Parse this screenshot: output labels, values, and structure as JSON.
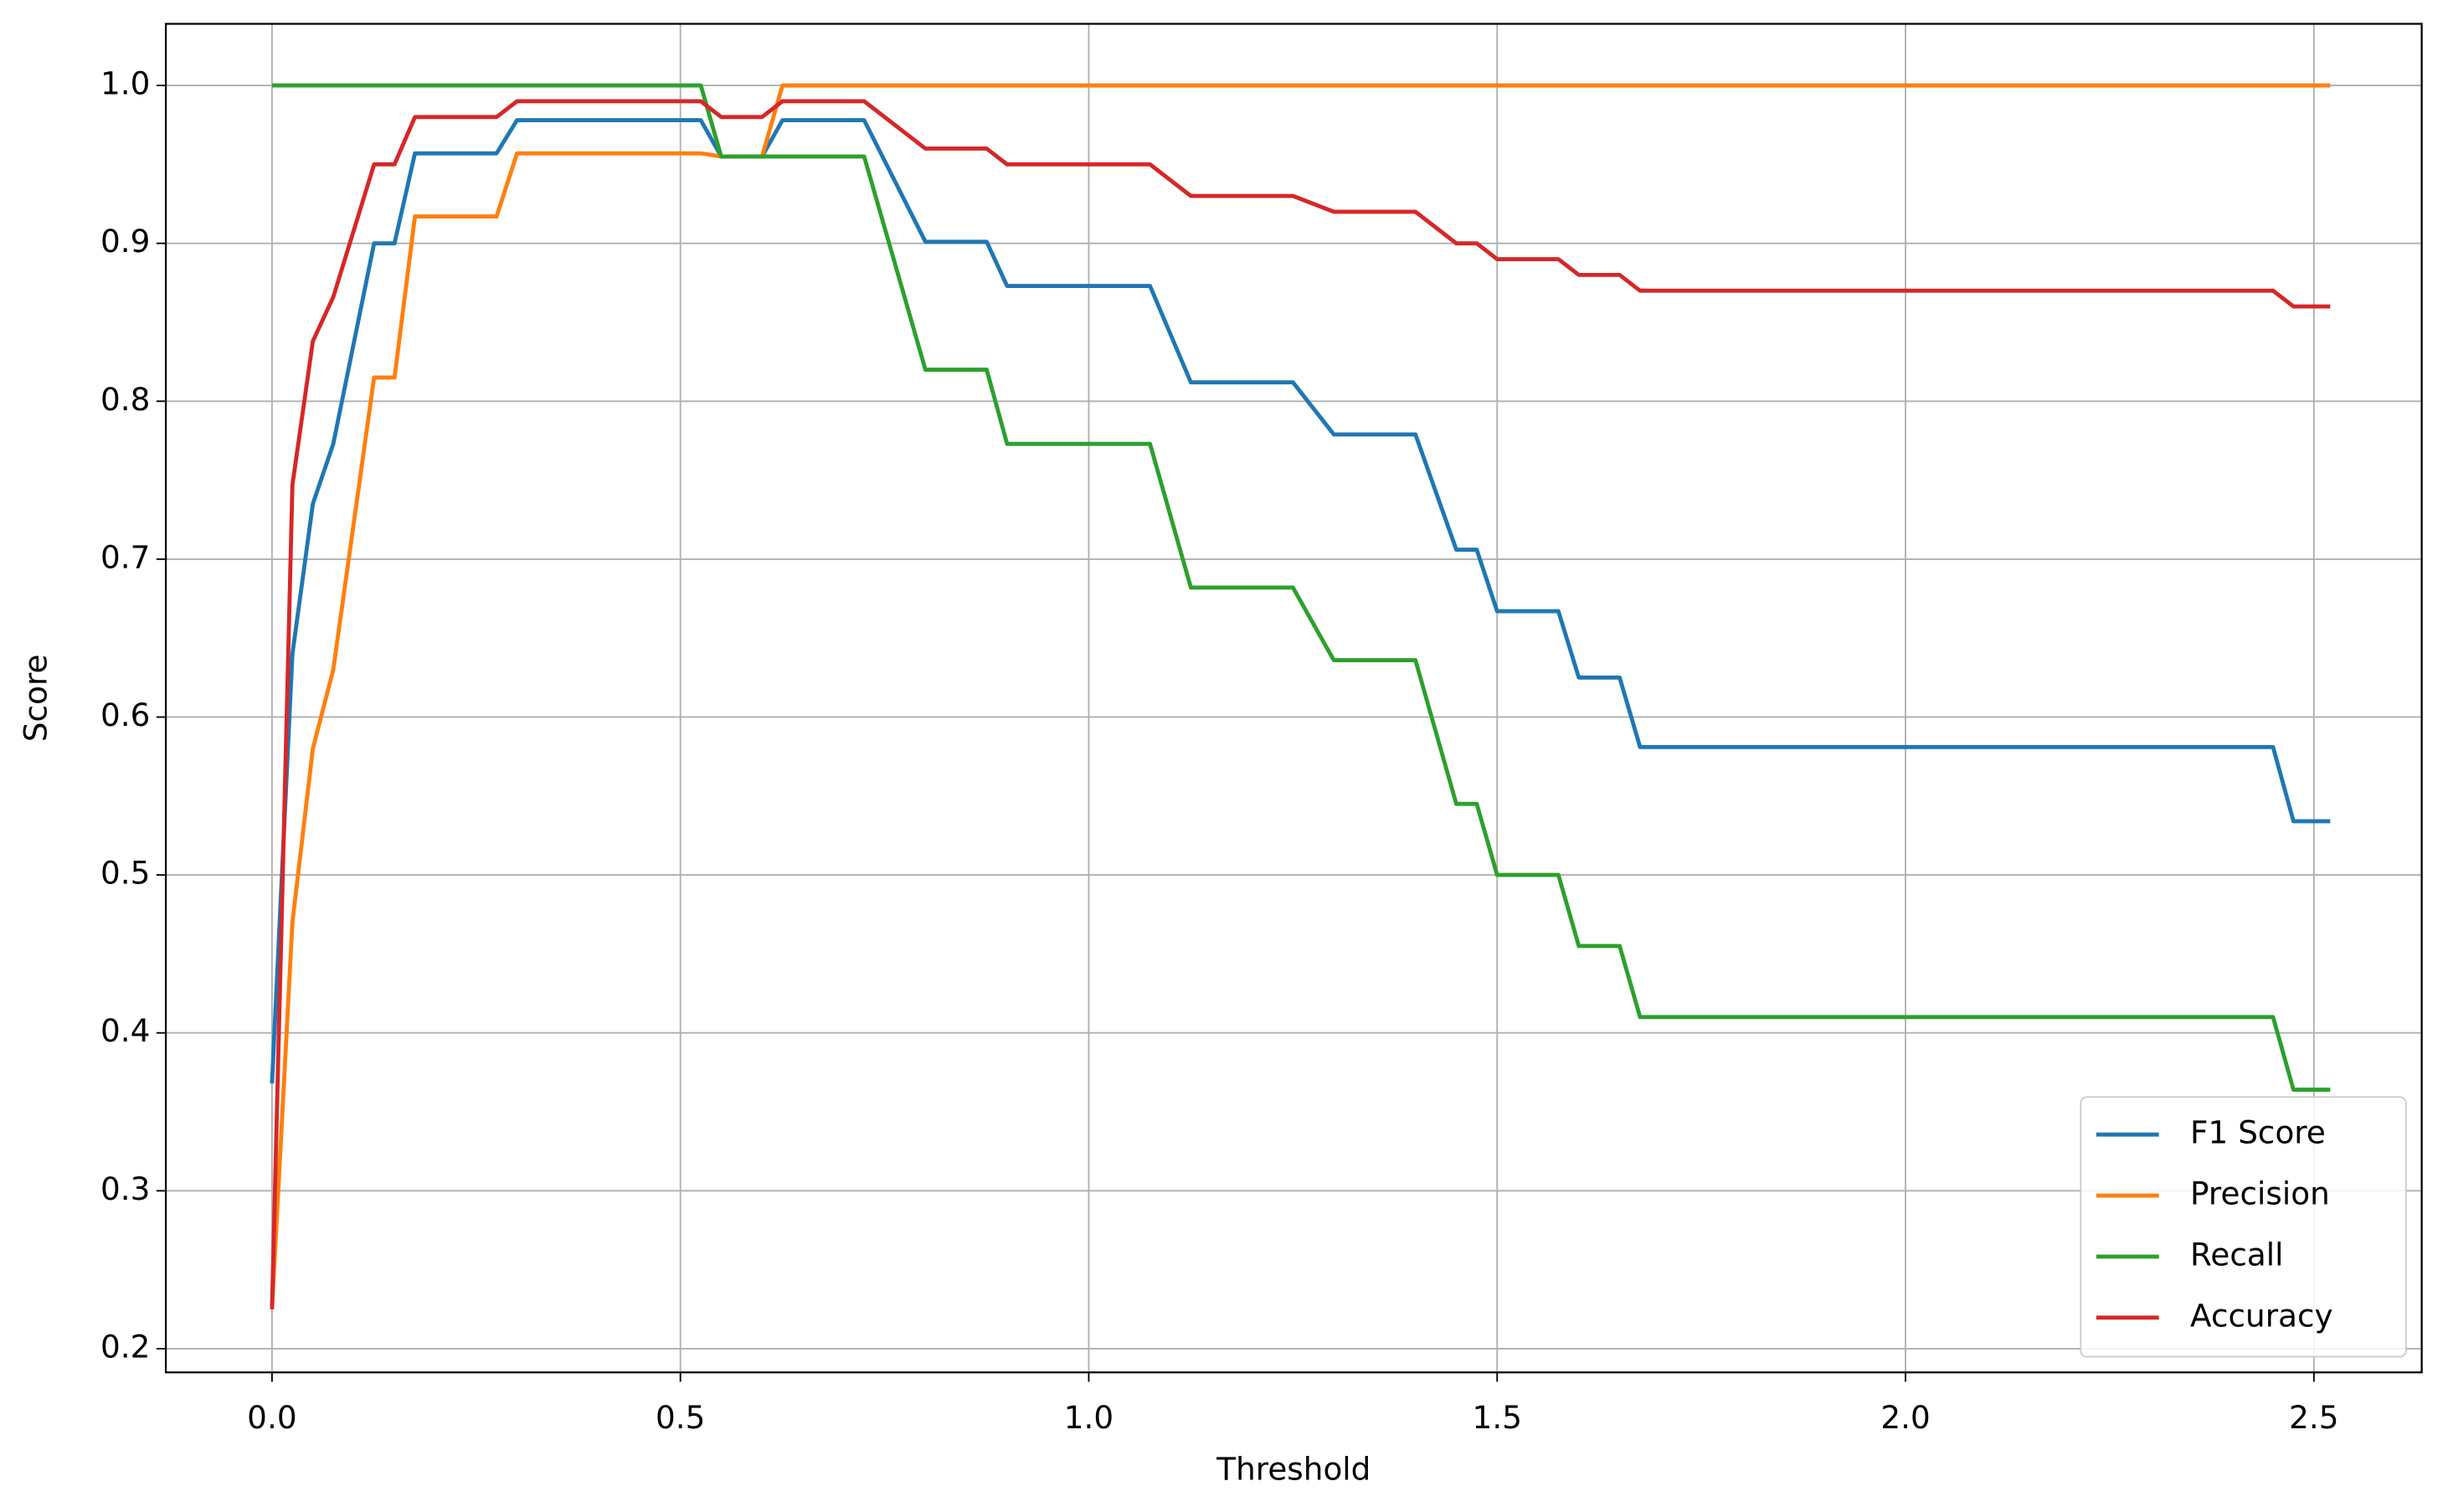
{
  "chart_data": {
    "type": "line",
    "xlabel": "Threshold",
    "ylabel": "Score",
    "x": [
      0,
      0.025,
      0.05,
      0.075,
      0.125,
      0.15,
      0.175,
      0.275,
      0.3,
      0.525,
      0.55,
      0.6,
      0.625,
      0.725,
      0.8,
      0.875,
      0.9,
      1.075,
      1.125,
      1.25,
      1.3,
      1.4,
      1.45,
      1.475,
      1.5,
      1.575,
      1.6,
      1.65,
      1.675,
      2.45,
      2.475,
      2.52
    ],
    "series": [
      {
        "name": "F1 Score",
        "color": "#1f77b4",
        "values": [
          0.368,
          0.64,
          0.735,
          0.773,
          0.9,
          0.9,
          0.957,
          0.957,
          0.978,
          0.978,
          0.955,
          0.955,
          0.978,
          0.978,
          0.901,
          0.901,
          0.873,
          0.873,
          0.812,
          0.812,
          0.779,
          0.779,
          0.706,
          0.706,
          0.667,
          0.667,
          0.625,
          0.625,
          0.581,
          0.581,
          0.534,
          0.534
        ]
      },
      {
        "name": "Precision",
        "color": "#ff7f0e",
        "values": [
          0.225,
          0.47,
          0.58,
          0.63,
          0.815,
          0.815,
          0.917,
          0.917,
          0.957,
          0.957,
          0.955,
          0.955,
          1.0,
          1.0,
          1.0,
          1.0,
          1.0,
          1.0,
          1.0,
          1.0,
          1.0,
          1.0,
          1.0,
          1.0,
          1.0,
          1.0,
          1.0,
          1.0,
          1.0,
          1.0,
          1.0,
          1.0
        ]
      },
      {
        "name": "Recall",
        "color": "#2ca02c",
        "values": [
          1.0,
          1.0,
          1.0,
          1.0,
          1.0,
          1.0,
          1.0,
          1.0,
          1.0,
          1.0,
          0.955,
          0.955,
          0.955,
          0.955,
          0.82,
          0.82,
          0.773,
          0.773,
          0.682,
          0.682,
          0.636,
          0.636,
          0.545,
          0.545,
          0.5,
          0.5,
          0.455,
          0.455,
          0.41,
          0.41,
          0.364,
          0.364
        ]
      },
      {
        "name": "Accuracy",
        "color": "#d62728",
        "values": [
          0.225,
          0.747,
          0.838,
          0.866,
          0.95,
          0.95,
          0.98,
          0.98,
          0.99,
          0.99,
          0.98,
          0.98,
          0.99,
          0.99,
          0.96,
          0.96,
          0.95,
          0.95,
          0.93,
          0.93,
          0.92,
          0.92,
          0.9,
          0.9,
          0.89,
          0.89,
          0.88,
          0.88,
          0.87,
          0.87,
          0.86,
          0.86
        ]
      }
    ],
    "xlim": [
      -0.13,
      2.632
    ],
    "ylim": [
      0.185,
      1.039
    ],
    "xticks": [
      {
        "value": 0,
        "label": "0.0"
      },
      0.5,
      {
        "value": 1,
        "label": "1.0"
      },
      1.5,
      {
        "value": 2,
        "label": "2.0"
      },
      2.5
    ],
    "yticks": [
      0.2,
      0.3,
      0.4,
      0.5,
      0.6,
      0.7,
      0.8,
      0.9,
      {
        "value": 1,
        "label": "1.0"
      }
    ],
    "grid": true,
    "legend": "lower right"
  }
}
